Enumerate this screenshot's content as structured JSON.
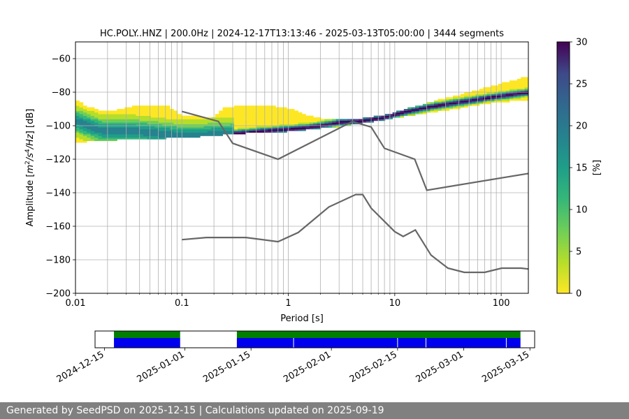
{
  "chart_data": [
    {
      "type": "heatmap",
      "title": "HC.POLY..HNZ | 200.0Hz | 2024-12-17T13:13:46 - 2025-03-13T05:00:00 | 3444 segments",
      "xlabel": "Period [s]",
      "ylabel_parts": [
        "Amplitude [",
        "m",
        "2",
        "/",
        "s",
        "4",
        "/",
        "Hz",
        "] [dB]"
      ],
      "xscale": "log",
      "xlim": [
        0.01,
        180
      ],
      "ylim": [
        -200,
        -50
      ],
      "x_ticks": [
        0.01,
        0.1,
        1,
        10,
        100
      ],
      "x_tick_labels": [
        "0.01",
        "0.1",
        "1",
        "10",
        "100"
      ],
      "y_ticks": [
        -200,
        -180,
        -160,
        -140,
        -120,
        -100,
        -80,
        -60
      ],
      "y_tick_labels": [
        "−200",
        "−180",
        "−160",
        "−140",
        "−120",
        "−100",
        "−80",
        "−60"
      ],
      "grid": true,
      "colormap": "viridis_r",
      "colorbar": {
        "label": "[%]",
        "range": [
          0,
          30
        ],
        "ticks": [
          0,
          5,
          10,
          15,
          20,
          25,
          30
        ],
        "tick_labels": [
          "0",
          "5",
          "10",
          "15",
          "20",
          "25",
          "30"
        ]
      },
      "pdf_band": {
        "comment_fields": [
          "period",
          "low_dB",
          "high_dB",
          "mode_dB"
        ],
        "points": [
          [
            0.01,
            -110,
            -85,
            -97
          ],
          [
            0.013,
            -109,
            -89,
            -100
          ],
          [
            0.018,
            -109,
            -92,
            -103
          ],
          [
            0.025,
            -108,
            -91,
            -103
          ],
          [
            0.035,
            -108,
            -89,
            -103
          ],
          [
            0.05,
            -108,
            -88,
            -104
          ],
          [
            0.07,
            -107,
            -88,
            -105
          ],
          [
            0.1,
            -107,
            -94,
            -106
          ],
          [
            0.15,
            -106,
            -95,
            -106
          ],
          [
            0.2,
            -106,
            -95,
            -105
          ],
          [
            0.25,
            -105,
            -90,
            -105
          ],
          [
            0.4,
            -104,
            -88,
            -104
          ],
          [
            0.6,
            -104,
            -88,
            -103
          ],
          [
            1.0,
            -103,
            -90,
            -102
          ],
          [
            1.5,
            -102,
            -94,
            -101
          ],
          [
            2.0,
            -101,
            -96,
            -100
          ],
          [
            3.0,
            -100,
            -97,
            -98
          ],
          [
            5.0,
            -98,
            -96,
            -97
          ],
          [
            8.0,
            -96,
            -94,
            -95
          ],
          [
            12,
            -94,
            -91,
            -92
          ],
          [
            20,
            -92,
            -87,
            -89
          ],
          [
            40,
            -89,
            -82,
            -86
          ],
          [
            80,
            -86,
            -77,
            -83
          ],
          [
            180,
            -84,
            -71,
            -80
          ]
        ]
      },
      "series": [
        {
          "name": "",
          "color": "#666666",
          "x": [
            0.1,
            0.22,
            0.3,
            0.8,
            4.0,
            6.0,
            8.0,
            15.4,
            20.0,
            180
          ],
          "y": [
            -91.5,
            -97.4,
            -110.5,
            -120.0,
            -97.5,
            -100.8,
            -113.5,
            -120.0,
            -138.5,
            -128.5
          ]
        },
        {
          "name": "",
          "color": "#666666",
          "x": [
            0.1,
            0.17,
            0.4,
            0.8,
            1.24,
            2.4,
            4.3,
            5.0,
            6.0,
            10.0,
            12.0,
            15.6,
            21.9,
            31.6,
            45.0,
            70.0,
            101,
            154,
            180
          ],
          "y": [
            -168.0,
            -166.7,
            -166.7,
            -169.2,
            -163.7,
            -148.5,
            -141.1,
            -141.1,
            -149.2,
            -163.2,
            -166.1,
            -162.2,
            -177.2,
            -185.0,
            -187.5,
            -187.5,
            -185.0,
            -185.0,
            -185.5
          ]
        }
      ]
    },
    {
      "type": "bar",
      "comment": "data availability timeline",
      "x_ticks": [
        "2024-12-15",
        "2025-01-01",
        "2025-01-15",
        "2025-02-01",
        "2025-02-15",
        "2025-03-01",
        "2025-03-15"
      ],
      "x_range": [
        "2024-12-13",
        "2025-03-16"
      ],
      "colors": {
        "available": "#0000ee",
        "segments": "#007f00"
      },
      "segments": [
        [
          "2024-12-17",
          "2024-12-31"
        ],
        [
          "2025-01-12",
          "2025-03-13"
        ]
      ],
      "gaps": [
        "2025-01-24",
        "2025-02-15",
        "2025-02-21",
        "2025-03-10"
      ]
    }
  ],
  "footer": {
    "text": "Generated by SeedPSD on 2025-12-15 | Calculations updated on 2025-09-19"
  }
}
